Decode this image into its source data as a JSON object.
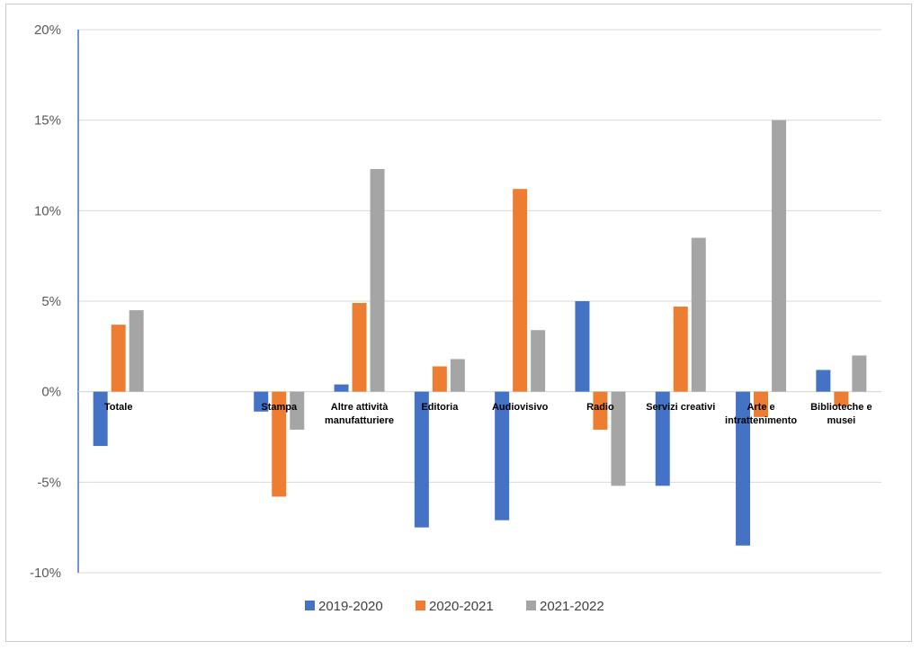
{
  "chart_data": {
    "type": "bar",
    "title": "",
    "xlabel": "",
    "ylabel": "",
    "ylim": [
      -10,
      20
    ],
    "yticks": [
      -10,
      -5,
      0,
      5,
      10,
      15,
      20
    ],
    "ytick_labels": [
      "-10%",
      "-5%",
      "0%",
      "5%",
      "10%",
      "15%",
      "20%"
    ],
    "grid": true,
    "legend_position": "bottom",
    "categories": [
      [
        "Totale"
      ],
      [
        ""
      ],
      [
        "Stampa"
      ],
      [
        "Altre attività",
        "manufatturiere"
      ],
      [
        "Editoria"
      ],
      [
        "Audiovisivo"
      ],
      [
        "Radio"
      ],
      [
        "Servizi creativi"
      ],
      [
        "Arte e",
        "intrattenimento"
      ],
      [
        "Biblioteche e",
        "musei"
      ]
    ],
    "series": [
      {
        "name": "2019-2020",
        "color": "#4472c4",
        "values": [
          -3.0,
          null,
          -1.1,
          0.4,
          -7.5,
          -7.1,
          5.0,
          -5.2,
          -8.5,
          1.2
        ]
      },
      {
        "name": "2020-2021",
        "color": "#ed7d31",
        "values": [
          3.7,
          null,
          -5.8,
          4.9,
          1.4,
          11.2,
          -2.1,
          4.7,
          -1.4,
          -0.8
        ]
      },
      {
        "name": "2021-2022",
        "color": "#a5a5a5",
        "values": [
          4.5,
          null,
          -2.1,
          12.3,
          1.8,
          3.4,
          -5.2,
          8.5,
          15.0,
          2.0
        ]
      }
    ]
  }
}
